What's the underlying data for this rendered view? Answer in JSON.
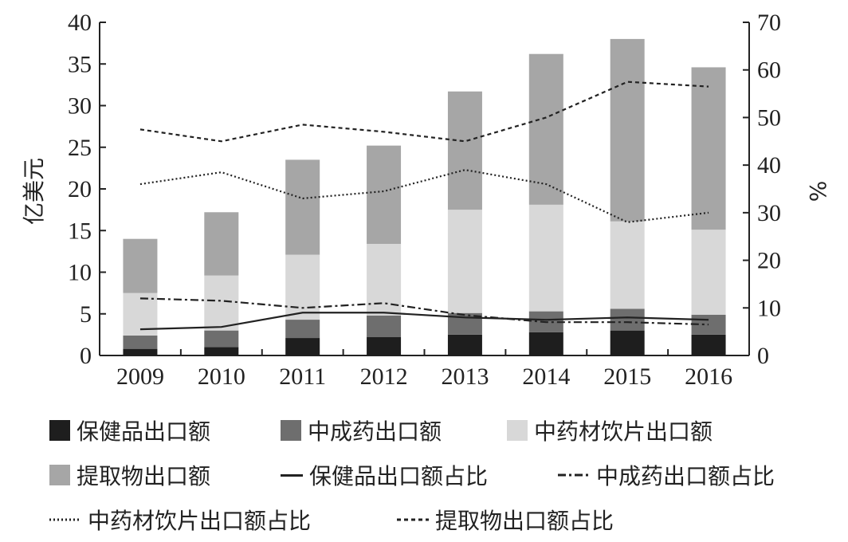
{
  "chart_data": {
    "type": "bar",
    "stacked": true,
    "categories": [
      "2009",
      "2010",
      "2011",
      "2012",
      "2013",
      "2014",
      "2015",
      "2016"
    ],
    "ylabel": "亿美元",
    "ylabel_right": "%",
    "ylim": [
      0,
      40
    ],
    "ylim_right": [
      0,
      70
    ],
    "yticks": [
      "0",
      "5",
      "10",
      "15",
      "20",
      "25",
      "30",
      "35",
      "40"
    ],
    "yticks_right": [
      "0",
      "10",
      "20",
      "30",
      "40",
      "50",
      "60",
      "70"
    ],
    "series": [
      {
        "name": "保健品出口额",
        "type": "bar",
        "color": "#1e1e1e",
        "values": [
          0.8,
          1.0,
          2.1,
          2.2,
          2.5,
          2.8,
          3.0,
          2.5
        ]
      },
      {
        "name": "中成药出口额",
        "type": "bar",
        "color": "#6e6e6e",
        "values": [
          1.6,
          2.0,
          2.2,
          2.6,
          2.6,
          2.5,
          2.6,
          2.4
        ]
      },
      {
        "name": "中药材饮片出口额",
        "type": "bar",
        "color": "#d8d8d8",
        "values": [
          5.1,
          6.6,
          7.8,
          8.6,
          12.4,
          12.8,
          10.5,
          10.2
        ]
      },
      {
        "name": "提取物出口额",
        "type": "bar",
        "color": "#a6a6a6",
        "values": [
          6.5,
          7.6,
          11.4,
          11.8,
          14.2,
          18.1,
          21.9,
          19.5
        ]
      },
      {
        "name": "保健品出口额占比",
        "type": "line",
        "axis": "right",
        "dash": "solid",
        "values": [
          5.5,
          6.0,
          9.0,
          9.0,
          8.0,
          7.5,
          8.0,
          7.5
        ]
      },
      {
        "name": "中成药出口额占比",
        "type": "line",
        "axis": "right",
        "dash": "dashdot",
        "values": [
          12.0,
          11.5,
          10.0,
          11.0,
          8.5,
          7.0,
          7.0,
          6.5
        ]
      },
      {
        "name": "中药材饮片出口额占比",
        "type": "line",
        "axis": "right",
        "dash": "dotted",
        "values": [
          36.0,
          38.5,
          33.0,
          34.5,
          39.0,
          36.0,
          28.0,
          30.0
        ]
      },
      {
        "name": "提取物出口额占比",
        "type": "line",
        "axis": "right",
        "dash": "dashed",
        "values": [
          47.5,
          45.0,
          48.5,
          47.0,
          45.0,
          50.0,
          57.5,
          56.5
        ]
      }
    ],
    "grid": false,
    "legend_position": "bottom"
  }
}
